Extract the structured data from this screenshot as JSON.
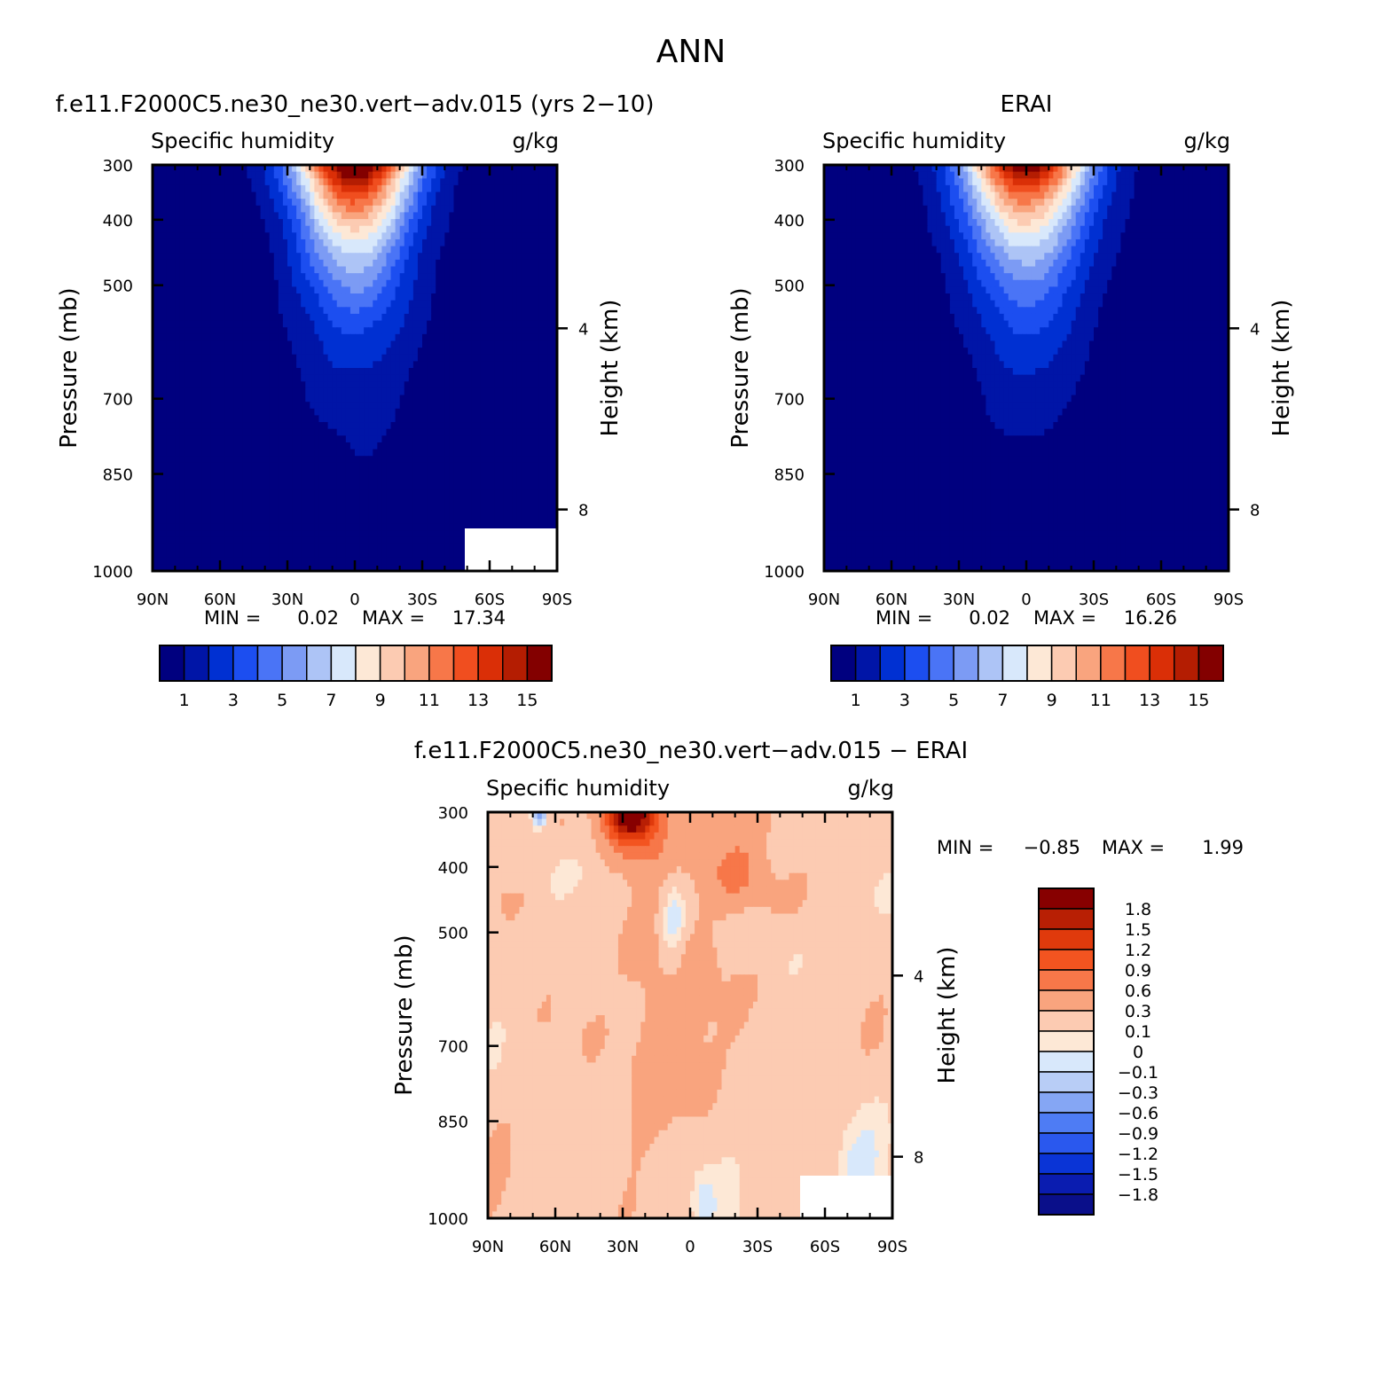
{
  "figure": {
    "title": "ANN"
  },
  "colors": {
    "abs_scale": [
      "#00007f",
      "#0015a7",
      "#0030d2",
      "#1c4ef0",
      "#4a74f6",
      "#7c9bf4",
      "#adc4f6",
      "#d8e8fb",
      "#fde8d6",
      "#fccbb2",
      "#f9a47e",
      "#f77749",
      "#f04e1f",
      "#da2f07",
      "#b41d02",
      "#830000"
    ],
    "diff_scale": [
      "#0a0f8a",
      "#0a1cb0",
      "#0a34d6",
      "#2a58ee",
      "#4e7cf4",
      "#85a6f4",
      "#b8cdf6",
      "#d8e8fb",
      "#fde8d6",
      "#fccbb2",
      "#f9a47e",
      "#f77749",
      "#f35420",
      "#e03a0c",
      "#b81f04",
      "#870000"
    ]
  },
  "chart_data": [
    {
      "type": "heatmap",
      "panel": "model",
      "title": "f.e11.F2000C5.ne30_ne30.vert−adv.015 (yrs 2−10)",
      "subtitle_left": "Specific humidity",
      "subtitle_right": "g/kg",
      "ylabel": "Pressure (mb)",
      "ylabel_right": "Height (km)",
      "x_ticks": [
        "90N",
        "60N",
        "30N",
        "0",
        "30S",
        "60S",
        "90S"
      ],
      "y_ticks": [
        "300",
        "400",
        "500",
        "700",
        "850",
        "1000"
      ],
      "y_ticks_right": [
        "8",
        "4"
      ],
      "min_label": "MIN =",
      "min_value": "0.02",
      "max_label": "MAX =",
      "max_value": "17.34",
      "colorbar_labels": [
        "1",
        "3",
        "5",
        "7",
        "9",
        "11",
        "13",
        "15"
      ],
      "peak": 17.34,
      "spread": 1.0,
      "xlim": [
        90,
        -90
      ],
      "ylim": [
        1000,
        300
      ]
    },
    {
      "type": "heatmap",
      "panel": "obs",
      "title": "ERAI",
      "subtitle_left": "Specific humidity",
      "subtitle_right": "g/kg",
      "ylabel": "Pressure (mb)",
      "ylabel_right": "Height (km)",
      "x_ticks": [
        "90N",
        "60N",
        "30N",
        "0",
        "30S",
        "60S",
        "90S"
      ],
      "y_ticks": [
        "300",
        "400",
        "500",
        "700",
        "850",
        "1000"
      ],
      "y_ticks_right": [
        "8",
        "4"
      ],
      "min_label": "MIN =",
      "min_value": "0.02",
      "max_label": "MAX =",
      "max_value": "16.26",
      "colorbar_labels": [
        "1",
        "3",
        "5",
        "7",
        "9",
        "11",
        "13",
        "15"
      ],
      "peak": 16.26,
      "spread": 1.05,
      "xlim": [
        90,
        -90
      ],
      "ylim": [
        1000,
        300
      ]
    },
    {
      "type": "heatmap",
      "panel": "diff",
      "title": "f.e11.F2000C5.ne30_ne30.vert−adv.015 − ERAI",
      "subtitle_left": "Specific humidity",
      "subtitle_right": "g/kg",
      "ylabel": "Pressure (mb)",
      "ylabel_right": "Height (km)",
      "x_ticks": [
        "90N",
        "60N",
        "30N",
        "0",
        "30S",
        "60S",
        "90S"
      ],
      "y_ticks": [
        "300",
        "400",
        "500",
        "700",
        "850",
        "1000"
      ],
      "y_ticks_right": [
        "8",
        "4"
      ],
      "min_label": "MIN =",
      "min_value": "−0.85",
      "max_label": "MAX =",
      "max_value": "1.99",
      "colorbar_labels": [
        "1.8",
        "1.5",
        "1.2",
        "0.9",
        "0.6",
        "0.3",
        "0.1",
        "0",
        "−0.1",
        "−0.3",
        "−0.6",
        "−0.9",
        "−1.2",
        "−1.5",
        "−1.8"
      ],
      "xlim": [
        90,
        -90
      ],
      "ylim": [
        1000,
        300
      ]
    }
  ]
}
